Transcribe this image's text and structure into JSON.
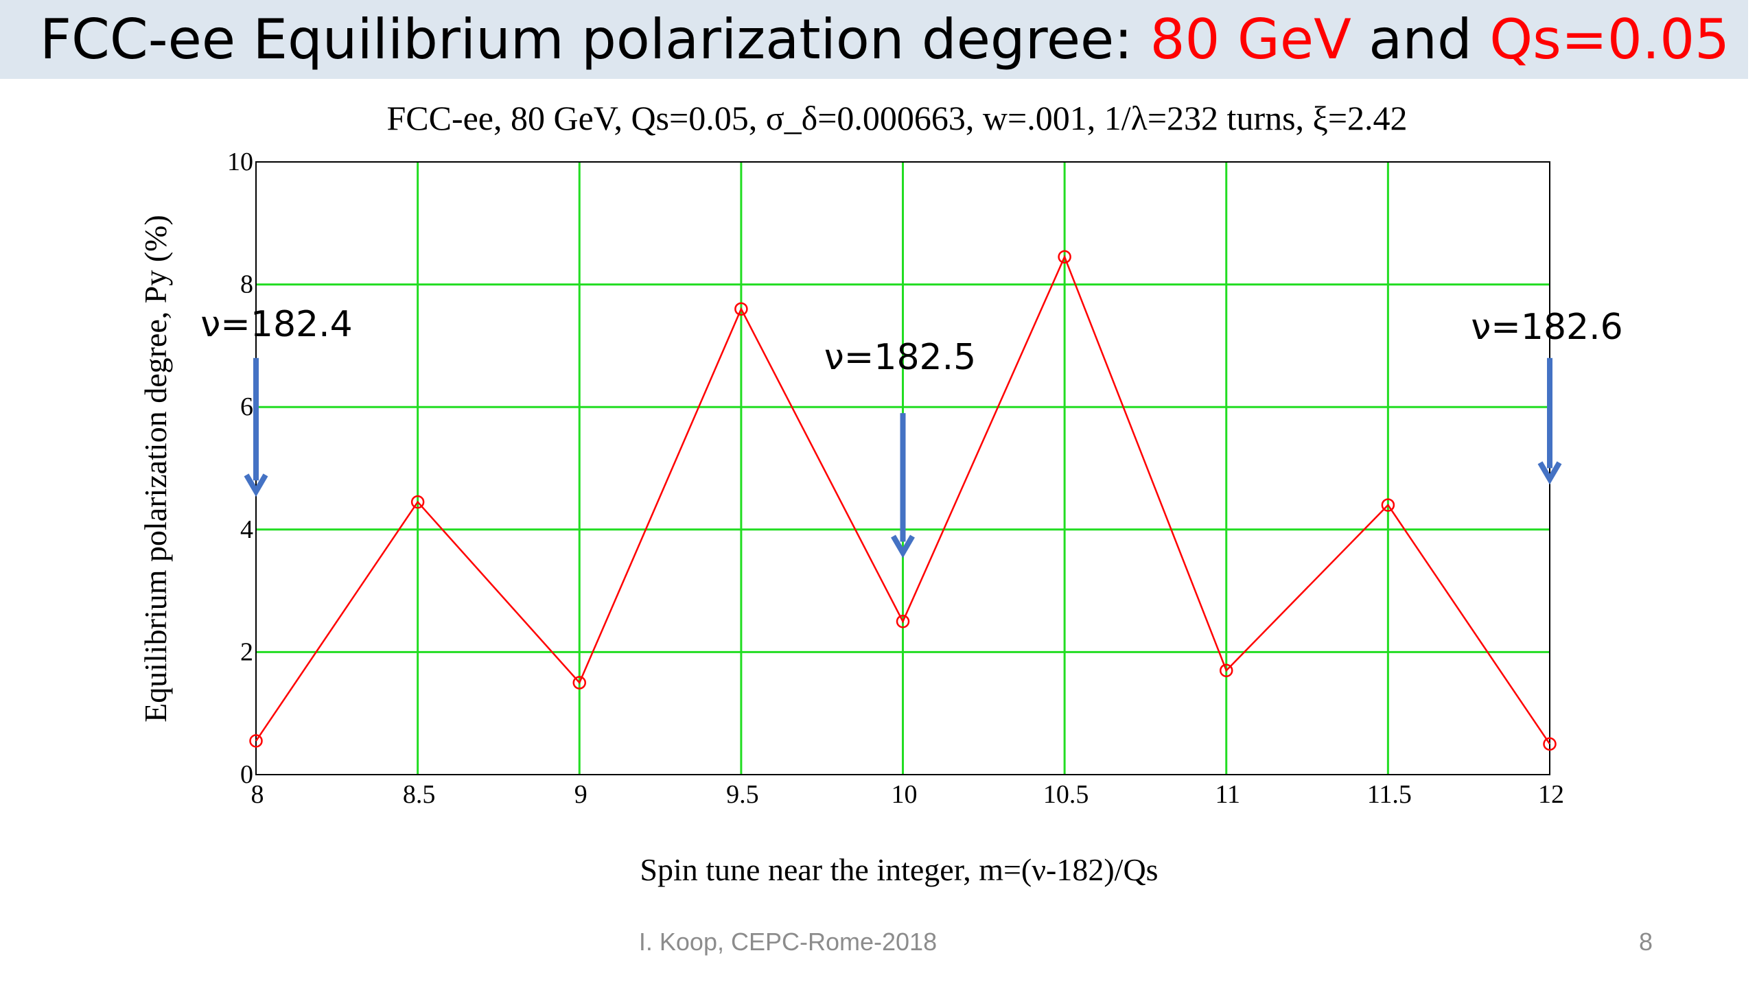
{
  "slide": {
    "title_parts": [
      "FCC-ee Equilibrium polarization degree: ",
      "80 GeV",
      " and ",
      "Qs=0.05"
    ],
    "accent_color": "#ff0000",
    "footer": "I. Koop, CEPC-Rome-2018",
    "page_number": "8"
  },
  "chart_data": {
    "type": "line",
    "title": "FCC-ee, 80 GeV, Qs=0.05, σ_δ=0.000663, w=.001, 1/λ=232 turns, ξ=2.42",
    "xlabel": "Spin tune near the integer, m=(ν-182)/Qs",
    "ylabel": "Equilibrium polarization degree, Py (%)",
    "xlim": [
      8,
      12
    ],
    "ylim": [
      0,
      10
    ],
    "x_ticks": [
      "8",
      "8.5",
      "9",
      "9.5",
      "10",
      "10.5",
      "11",
      "11.5",
      "12"
    ],
    "y_ticks": [
      "0",
      "2",
      "4",
      "6",
      "8",
      "10"
    ],
    "grid": true,
    "grid_color": "#22dd22",
    "series": [
      {
        "color": "#ff0000",
        "marker": "circle",
        "x": [
          8,
          8.5,
          9,
          9.5,
          10,
          10.5,
          11,
          11.5,
          12
        ],
        "y": [
          0.55,
          4.45,
          1.5,
          7.6,
          2.5,
          8.45,
          1.7,
          4.4,
          0.5
        ]
      }
    ],
    "annotations": [
      {
        "text": "ν=182.4",
        "x": 8,
        "arrow_from": 6.8,
        "arrow_to": 4.6
      },
      {
        "text": "ν=182.5",
        "x": 10,
        "arrow_from": 5.9,
        "arrow_to": 3.6
      },
      {
        "text": "ν=182.6",
        "x": 12,
        "arrow_from": 6.8,
        "arrow_to": 4.8
      }
    ],
    "annotation_color": "#4472c4"
  }
}
